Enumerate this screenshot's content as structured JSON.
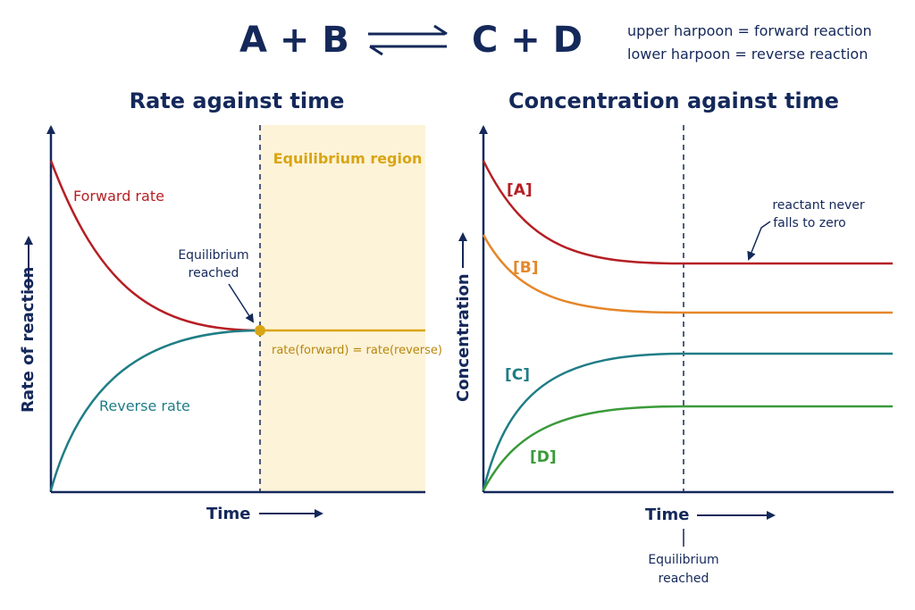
{
  "equation": {
    "left": "A + B",
    "right": "C + D",
    "note1": "upper harpoon = forward reaction",
    "note2": "lower harpoon = reverse reaction"
  },
  "rate_chart": {
    "title": "Rate against time",
    "xlabel": "Time",
    "ylabel": "Rate of reaction",
    "forward_label": "Forward rate",
    "reverse_label": "Reverse rate",
    "region_label": "Equilibrium region",
    "eq_line1": "Equilibrium",
    "eq_line2": "reached",
    "equality_label": "rate(forward) = rate(reverse)"
  },
  "conc_chart": {
    "title": "Concentration against time",
    "xlabel": "Time",
    "ylabel": "Concentration",
    "a_label": "[A]",
    "b_label": "[B]",
    "c_label": "[C]",
    "d_label": "[D]",
    "note_line1": "reactant never",
    "note_line2": "falls to zero",
    "eq_line1": "Equilibrium",
    "eq_line2": "reached"
  },
  "colors": {
    "navy": "#14285a",
    "forward": "#b51f24",
    "reverse": "#1f7d86",
    "equilibrium": "#d9a514",
    "region_fill": "#fdf3d8",
    "A": "#b51f24",
    "B": "#e5862a",
    "C": "#1f7d86",
    "D": "#3a9a3a"
  }
}
